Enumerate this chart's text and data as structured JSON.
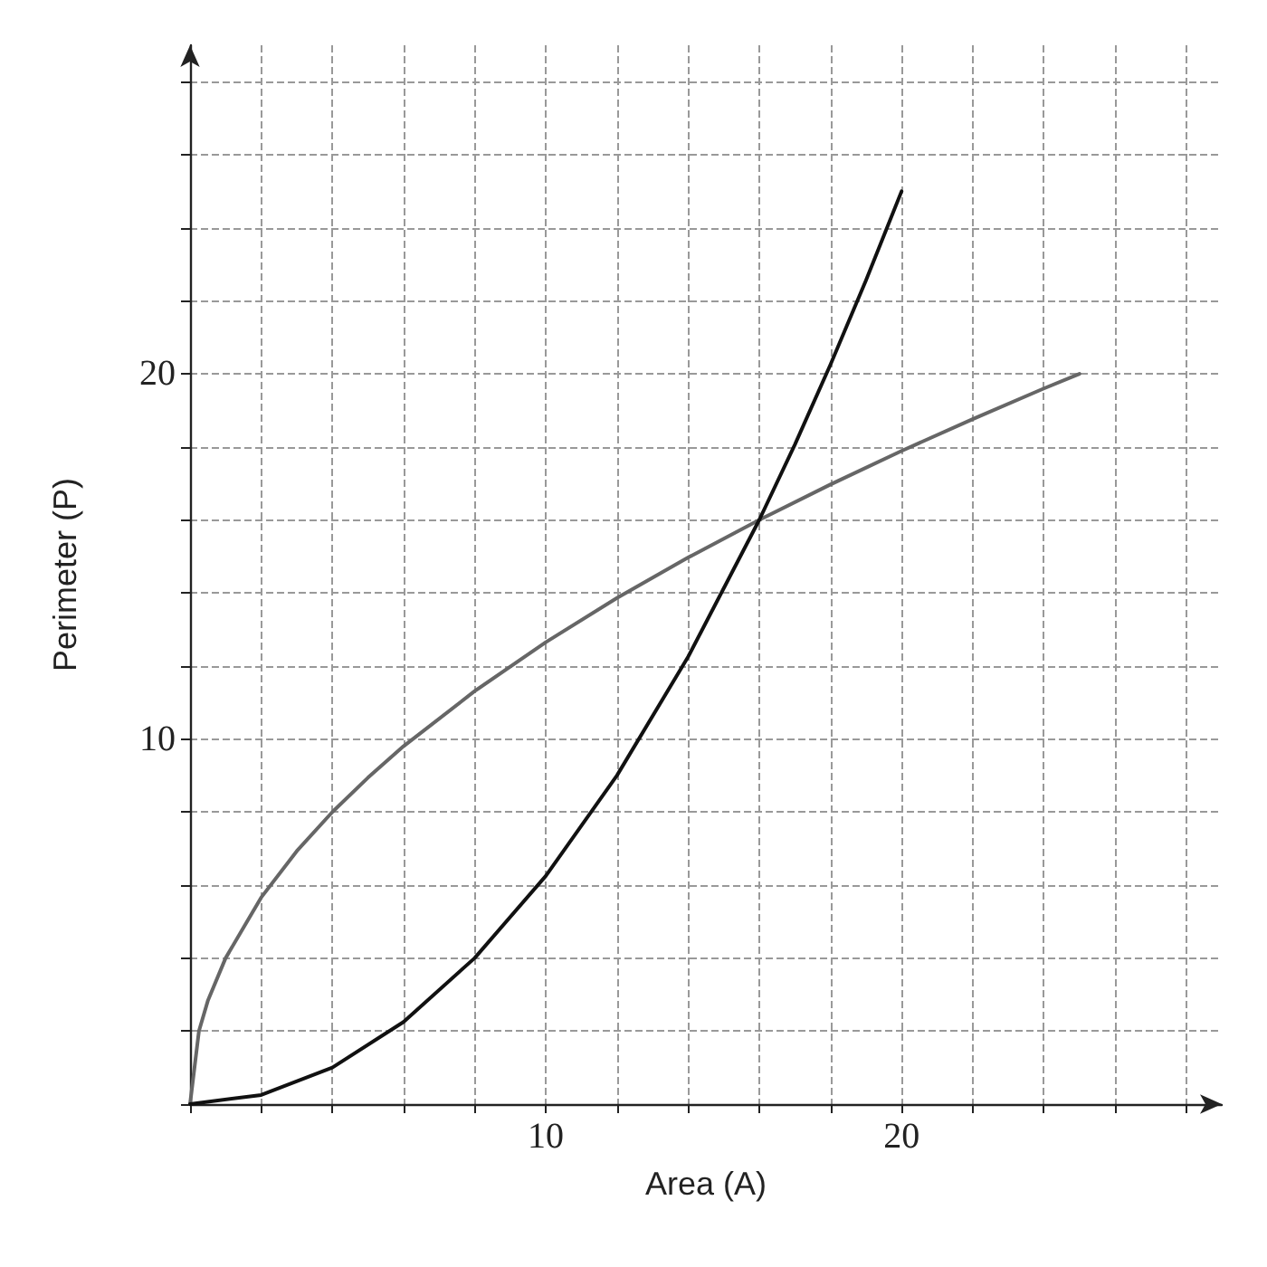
{
  "chart_data": {
    "type": "line",
    "xlabel": "Area (A)",
    "ylabel": "Perimeter (P)",
    "xlim": [
      0,
      29
    ],
    "ylim": [
      0,
      29
    ],
    "xticks": [
      {
        "value": 0,
        "label": null
      },
      {
        "value": 2,
        "label": null
      },
      {
        "value": 4,
        "label": null
      },
      {
        "value": 6,
        "label": null
      },
      {
        "value": 8,
        "label": null
      },
      10,
      {
        "value": 12,
        "label": null
      },
      {
        "value": 14,
        "label": null
      },
      {
        "value": 16,
        "label": null
      },
      {
        "value": 18,
        "label": null
      },
      20,
      {
        "value": 22,
        "label": null
      },
      {
        "value": 24,
        "label": null
      },
      {
        "value": 26,
        "label": null
      },
      {
        "value": 28,
        "label": null
      }
    ],
    "yticks": [
      {
        "value": 0,
        "label": null
      },
      {
        "value": 2,
        "label": null
      },
      {
        "value": 4,
        "label": null
      },
      {
        "value": 6,
        "label": null
      },
      {
        "value": 8,
        "label": null
      },
      10,
      {
        "value": 12,
        "label": null
      },
      {
        "value": 14,
        "label": null
      },
      {
        "value": 16,
        "label": null
      },
      {
        "value": 18,
        "label": null
      },
      20,
      {
        "value": 22,
        "label": null
      },
      {
        "value": 24,
        "label": null
      },
      {
        "value": 26,
        "label": null
      },
      {
        "value": 28,
        "label": null
      }
    ],
    "grid": true,
    "marker": "none",
    "line_style": "solid",
    "series": [
      {
        "color": "#666666",
        "x": [
          0,
          0.25,
          0.5,
          1,
          2,
          3,
          4,
          5,
          6,
          8,
          10,
          12,
          14,
          16,
          18,
          20,
          22,
          24,
          25
        ],
        "values": [
          0,
          2,
          2.83,
          4,
          5.66,
          6.93,
          8,
          8.94,
          9.8,
          11.31,
          12.65,
          13.86,
          14.97,
          16,
          16.97,
          17.89,
          18.76,
          19.6,
          20
        ]
      },
      {
        "color": "#111111",
        "x": [
          0,
          2,
          4,
          6,
          8,
          10,
          12,
          14,
          16,
          17,
          18,
          19,
          20
        ],
        "values": [
          0,
          0.25,
          1,
          2.25,
          4,
          6.25,
          9,
          12.25,
          16,
          18.06,
          20.25,
          22.56,
          25
        ]
      }
    ]
  }
}
